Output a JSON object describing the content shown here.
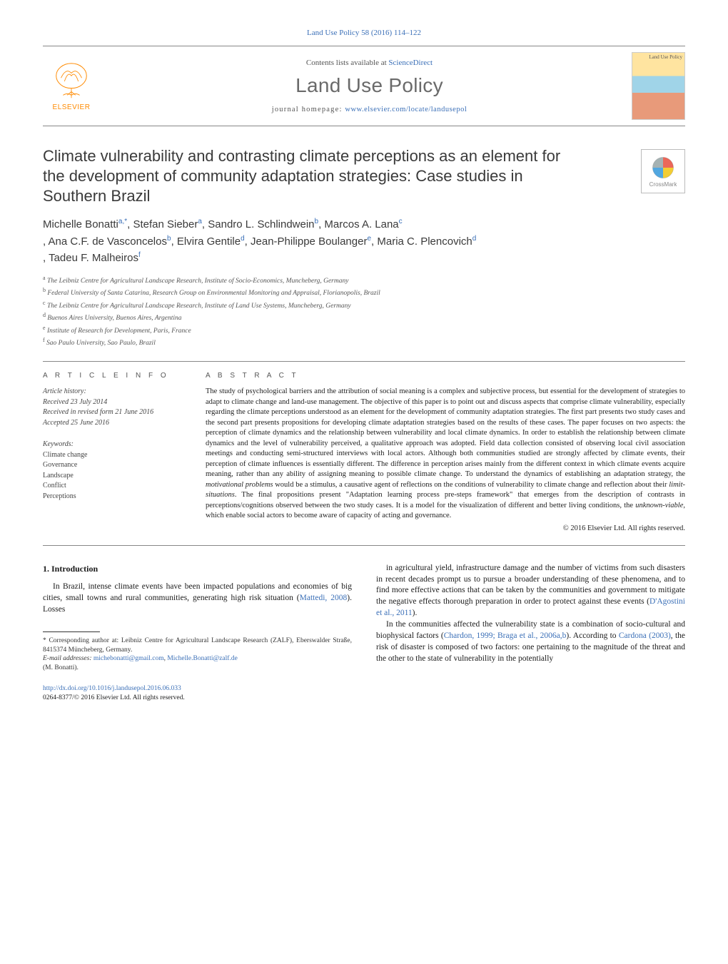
{
  "journal_ref": "Land Use Policy 58 (2016) 114–122",
  "header": {
    "contents_prefix": "Contents lists available at ",
    "contents_link": "ScienceDirect",
    "journal_title": "Land Use Policy",
    "homepage_prefix": "journal homepage: ",
    "homepage_link": "www.elsevier.com/locate/landusepol",
    "publisher": "ELSEVIER",
    "cover_label": "Land Use Policy"
  },
  "article": {
    "title": "Climate vulnerability and contrasting climate perceptions as an element for the development of community adaptation strategies: Case studies in Southern Brazil",
    "crossmark": "CrossMark"
  },
  "authors": [
    {
      "name": "Michelle Bonatti",
      "marks": "a,*"
    },
    {
      "name": "Stefan Sieber",
      "marks": "a"
    },
    {
      "name": "Sandro L. Schlindwein",
      "marks": "b"
    },
    {
      "name": "Marcos A. Lana",
      "marks": "c"
    },
    {
      "name": "Ana C.F. de Vasconcelos",
      "marks": "b"
    },
    {
      "name": "Elvira Gentile",
      "marks": "d"
    },
    {
      "name": "Jean-Philippe Boulanger",
      "marks": "e"
    },
    {
      "name": "Maria C. Plencovich",
      "marks": "d"
    },
    {
      "name": "Tadeu F. Malheiros",
      "marks": "f"
    }
  ],
  "affiliations": [
    {
      "mark": "a",
      "text": "The Leibniz Centre for Agricultural Landscape Research, Institute of Socio-Economics, Muncheberg, Germany"
    },
    {
      "mark": "b",
      "text": "Federal University of Santa Catarina, Research Group on Environmental Monitoring and Appraisal, Florianopolis, Brazil"
    },
    {
      "mark": "c",
      "text": "The Leibniz Centre for Agricultural Landscape Research, Institute of Land Use Systems, Muncheberg, Germany"
    },
    {
      "mark": "d",
      "text": "Buenos Aires University, Buenos Aires, Argentina"
    },
    {
      "mark": "e",
      "text": "Institute of Research for Development, Paris, France"
    },
    {
      "mark": "f",
      "text": "Sao Paulo University, Sao Paulo, Brazil"
    }
  ],
  "info": {
    "heading": "A R T I C L E  I N F O",
    "history_label": "Article history:",
    "received": "Received 23 July 2014",
    "revised": "Received in revised form 21 June 2016",
    "accepted": "Accepted 25 June 2016",
    "keywords_label": "Keywords:",
    "keywords": [
      "Climate change",
      "Governance",
      "Landscape",
      "Conflict",
      "Perceptions"
    ]
  },
  "abstract": {
    "heading": "A B S T R A C T",
    "text": "The study of psychological barriers and the attribution of social meaning is a complex and subjective process, but essential for the development of strategies to adapt to climate change and land-use management. The objective of this paper is to point out and discuss aspects that comprise climate vulnerability, especially regarding the climate perceptions understood as an element for the development of community adaptation strategies. The first part presents two study cases and the second part presents propositions for developing climate adaptation strategies based on the results of these cases. The paper focuses on two aspects: the perception of climate dynamics and the relationship between vulnerability and local climate dynamics. In order to establish the relationship between climate dynamics and the level of vulnerability perceived, a qualitative approach was adopted. Field data collection consisted of observing local civil association meetings and conducting semi-structured interviews with local actors. Although both communities studied are strongly affected by climate events, their perception of climate influences is essentially different. The difference in perception arises mainly from the different context in which climate events acquire meaning, rather than any ability of assigning meaning to possible climate change. To understand the dynamics of establishing an adaptation strategy, the motivational problems would be a stimulus, a causative agent of reflections on the conditions of vulnerability to climate change and reflection about their limit-situations. The final propositions present \"Adaptation learning process pre-steps framework\" that emerges from the description of contrasts in perceptions/cognitions observed between the two study cases. It is a model for the visualization of different and better living conditions, the unknown-viable, which enable social actors to become aware of capacity of acting and governance.",
    "copyright": "© 2016 Elsevier Ltd. All rights reserved."
  },
  "body": {
    "section_heading": "1. Introduction",
    "col1_p1_pre": "In Brazil, intense climate events have been impacted populations and economies of big cities, small towns and rural communities, generating high risk situation (",
    "col1_p1_cite": "Mattedi, 2008",
    "col1_p1_post": "). Losses",
    "col2_p1_pre": "in agricultural yield, infrastructure damage and the number of victims from such disasters in recent decades prompt us to pursue a broader understanding of these phenomena, and to find more effective actions that can be taken by the communities and government to mitigate the negative effects thorough preparation in order to protect against these events (",
    "col2_p1_cite": "D'Agostini et al., 2011",
    "col2_p1_post": ").",
    "col2_p2_pre": "In the communities affected the vulnerability state is a combination of socio-cultural and biophysical factors (",
    "col2_p2_cite1": "Chardon, 1999; Braga et al., 2006a,b",
    "col2_p2_mid": "). According to ",
    "col2_p2_cite2": "Cardona (2003)",
    "col2_p2_post": ", the risk of disaster is composed of two factors: one pertaining to the magnitude of the threat and the other to the state of vulnerability in the potentially"
  },
  "footnote": {
    "corr_label": "* Corresponding author at: Leibniz Centre for Agricultural Landscape Research (ZALF), Eberswalder Straße, 8415374 Müncheberg, Germany.",
    "email_label": "E-mail addresses: ",
    "email1": "michebonatti@gmail.com",
    "email2": "Michelle.Bonatti@zalf.de",
    "email_author": "(M. Bonatti)."
  },
  "bottom": {
    "doi": "http://dx.doi.org/10.1016/j.landusepol.2016.06.033",
    "issn_copyright": "0264-8377/© 2016 Elsevier Ltd. All rights reserved."
  },
  "colors": {
    "link": "#3a6fb7",
    "elsevier_orange": "#ff8a00",
    "text": "#1a1a1a",
    "muted": "#555555"
  }
}
